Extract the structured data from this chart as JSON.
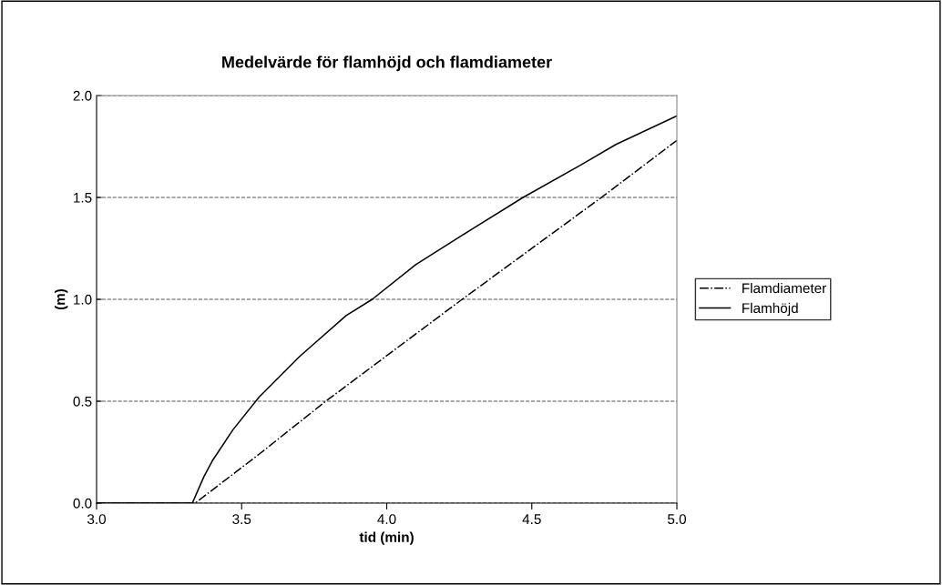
{
  "chart_data": {
    "type": "line",
    "title": "Medelvärde för flamhöjd och flamdiameter",
    "xlabel": "tid (min)",
    "ylabel": "(m)",
    "xlim": [
      3.0,
      5.0
    ],
    "xticks": [
      {
        "value": 3.0,
        "label": "3.0"
      },
      {
        "value": 3.5,
        "label": "3.5"
      },
      {
        "value": 4.0,
        "label": "4.0"
      },
      {
        "value": 4.5,
        "label": "4.5"
      },
      {
        "value": 5.0,
        "label": "5.0"
      }
    ],
    "ylim": [
      0.0,
      2.0
    ],
    "yticks": [
      {
        "value": 0.0,
        "label": "0.0"
      },
      {
        "value": 0.5,
        "label": "0.5"
      },
      {
        "value": 1.0,
        "label": "1.0"
      },
      {
        "value": 1.5,
        "label": "1.5"
      },
      {
        "value": 2.0,
        "label": "2.0"
      }
    ],
    "grid": "y",
    "legend": "right",
    "series": [
      {
        "name": "Flamdiameter",
        "color": "#000000",
        "line_style": "dashdot",
        "x": [
          3.0,
          3.34,
          3.56,
          3.79,
          4.26,
          4.74,
          5.0
        ],
        "values": [
          0.0,
          0.0,
          0.24,
          0.5,
          1.0,
          1.5,
          1.78
        ]
      },
      {
        "name": "Flamhöjd",
        "color": "#000000",
        "line_style": "solid",
        "x": [
          3.0,
          3.33,
          3.37,
          3.4,
          3.47,
          3.56,
          3.7,
          3.86,
          3.95,
          4.1,
          4.3,
          4.47,
          4.67,
          4.79,
          5.0
        ],
        "values": [
          0.0,
          0.0,
          0.13,
          0.21,
          0.36,
          0.52,
          0.72,
          0.92,
          1.0,
          1.17,
          1.35,
          1.5,
          1.66,
          1.76,
          1.9
        ]
      }
    ]
  }
}
